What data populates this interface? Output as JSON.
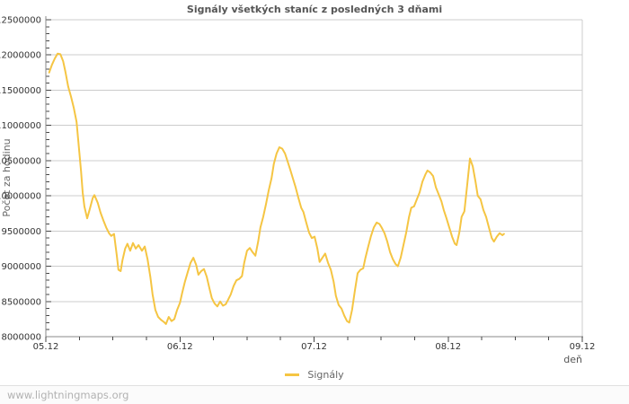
{
  "page": {
    "watermark": "www.lightningmaps.org"
  },
  "chart_data": {
    "type": "line",
    "title": "Signály všetkých staníc z posledných 3 dňami",
    "xlabel": "deň",
    "ylabel": "Počet za hodinu",
    "grid": true,
    "legend_position": "bottom-center",
    "x_range_hours": [
      0,
      96
    ],
    "ylim": [
      8000000,
      12500000
    ],
    "y_tick_step": 500000,
    "y_minor_step": 100000,
    "y_ticks": [
      "8000000",
      "8500000",
      "9000000",
      "9500000",
      "10000000",
      "10500000",
      "11000000",
      "11500000",
      "12000000",
      "12500000"
    ],
    "x_ticks": [
      {
        "hours": 0,
        "label": "05.12"
      },
      {
        "hours": 24,
        "label": "06.12"
      },
      {
        "hours": 48,
        "label": "07.12"
      },
      {
        "hours": 72,
        "label": "08.12"
      },
      {
        "hours": 96,
        "label": "09.12"
      }
    ],
    "x_minor_step_hours": 6,
    "colors": {
      "line": "#f5c543",
      "grid": "#cccccc",
      "axis": "#888888",
      "tick": "#444444",
      "title": "#555555",
      "watermark": "#b2b2b2"
    },
    "series": [
      {
        "name": "Signály",
        "points": [
          [
            0.6,
            11750000
          ],
          [
            1.1,
            11860000
          ],
          [
            1.6,
            11950000
          ],
          [
            2.1,
            12020000
          ],
          [
            2.6,
            12010000
          ],
          [
            3.1,
            11910000
          ],
          [
            3.5,
            11760000
          ],
          [
            4.0,
            11550000
          ],
          [
            4.5,
            11410000
          ],
          [
            5.0,
            11250000
          ],
          [
            5.5,
            11050000
          ],
          [
            5.9,
            10700000
          ],
          [
            6.3,
            10350000
          ],
          [
            6.6,
            10050000
          ],
          [
            6.9,
            9850000
          ],
          [
            7.4,
            9680000
          ],
          [
            7.9,
            9820000
          ],
          [
            8.4,
            9970000
          ],
          [
            8.7,
            10010000
          ],
          [
            9.3,
            9900000
          ],
          [
            9.8,
            9760000
          ],
          [
            10.3,
            9650000
          ],
          [
            10.8,
            9550000
          ],
          [
            11.3,
            9470000
          ],
          [
            11.7,
            9430000
          ],
          [
            12.2,
            9460000
          ],
          [
            12.7,
            9150000
          ],
          [
            13.0,
            8950000
          ],
          [
            13.4,
            8930000
          ],
          [
            13.7,
            9080000
          ],
          [
            14.2,
            9250000
          ],
          [
            14.6,
            9320000
          ],
          [
            15.1,
            9220000
          ],
          [
            15.6,
            9330000
          ],
          [
            16.1,
            9250000
          ],
          [
            16.6,
            9300000
          ],
          [
            17.2,
            9220000
          ],
          [
            17.7,
            9280000
          ],
          [
            18.2,
            9100000
          ],
          [
            18.7,
            8850000
          ],
          [
            19.1,
            8600000
          ],
          [
            19.6,
            8380000
          ],
          [
            20.1,
            8280000
          ],
          [
            20.6,
            8240000
          ],
          [
            21.1,
            8210000
          ],
          [
            21.5,
            8180000
          ],
          [
            22.0,
            8280000
          ],
          [
            22.5,
            8220000
          ],
          [
            23.0,
            8250000
          ],
          [
            23.5,
            8380000
          ],
          [
            24.0,
            8480000
          ],
          [
            24.4,
            8620000
          ],
          [
            24.9,
            8780000
          ],
          [
            25.4,
            8920000
          ],
          [
            25.9,
            9050000
          ],
          [
            26.4,
            9120000
          ],
          [
            26.9,
            9020000
          ],
          [
            27.3,
            8880000
          ],
          [
            27.8,
            8930000
          ],
          [
            28.3,
            8960000
          ],
          [
            28.8,
            8850000
          ],
          [
            29.3,
            8680000
          ],
          [
            29.7,
            8550000
          ],
          [
            30.2,
            8470000
          ],
          [
            30.7,
            8430000
          ],
          [
            31.2,
            8500000
          ],
          [
            31.7,
            8440000
          ],
          [
            32.2,
            8460000
          ],
          [
            32.6,
            8520000
          ],
          [
            33.1,
            8600000
          ],
          [
            33.6,
            8720000
          ],
          [
            34.1,
            8800000
          ],
          [
            34.6,
            8820000
          ],
          [
            35.1,
            8860000
          ],
          [
            35.5,
            9050000
          ],
          [
            36.0,
            9220000
          ],
          [
            36.5,
            9260000
          ],
          [
            37.0,
            9200000
          ],
          [
            37.5,
            9150000
          ],
          [
            38.0,
            9350000
          ],
          [
            38.4,
            9550000
          ],
          [
            38.9,
            9700000
          ],
          [
            39.4,
            9880000
          ],
          [
            39.9,
            10080000
          ],
          [
            40.4,
            10250000
          ],
          [
            40.8,
            10450000
          ],
          [
            41.3,
            10600000
          ],
          [
            41.8,
            10690000
          ],
          [
            42.3,
            10670000
          ],
          [
            42.8,
            10600000
          ],
          [
            43.3,
            10480000
          ],
          [
            43.7,
            10380000
          ],
          [
            44.2,
            10250000
          ],
          [
            44.7,
            10120000
          ],
          [
            45.2,
            9970000
          ],
          [
            45.7,
            9830000
          ],
          [
            46.1,
            9770000
          ],
          [
            46.6,
            9620000
          ],
          [
            47.1,
            9480000
          ],
          [
            47.6,
            9400000
          ],
          [
            48.1,
            9420000
          ],
          [
            48.6,
            9250000
          ],
          [
            49.0,
            9060000
          ],
          [
            49.5,
            9120000
          ],
          [
            50.0,
            9180000
          ],
          [
            50.5,
            9050000
          ],
          [
            51.0,
            8950000
          ],
          [
            51.5,
            8780000
          ],
          [
            51.9,
            8580000
          ],
          [
            52.4,
            8450000
          ],
          [
            52.9,
            8400000
          ],
          [
            53.4,
            8300000
          ],
          [
            53.9,
            8220000
          ],
          [
            54.3,
            8200000
          ],
          [
            54.8,
            8380000
          ],
          [
            55.3,
            8650000
          ],
          [
            55.8,
            8900000
          ],
          [
            56.3,
            8950000
          ],
          [
            56.8,
            8970000
          ],
          [
            57.2,
            9120000
          ],
          [
            57.7,
            9280000
          ],
          [
            58.2,
            9430000
          ],
          [
            58.7,
            9550000
          ],
          [
            59.2,
            9620000
          ],
          [
            59.7,
            9600000
          ],
          [
            60.1,
            9550000
          ],
          [
            60.6,
            9470000
          ],
          [
            61.1,
            9350000
          ],
          [
            61.6,
            9200000
          ],
          [
            62.1,
            9100000
          ],
          [
            62.6,
            9030000
          ],
          [
            63.0,
            9000000
          ],
          [
            63.5,
            9120000
          ],
          [
            64.0,
            9300000
          ],
          [
            64.5,
            9480000
          ],
          [
            65.0,
            9700000
          ],
          [
            65.4,
            9830000
          ],
          [
            65.9,
            9850000
          ],
          [
            66.4,
            9950000
          ],
          [
            66.9,
            10050000
          ],
          [
            67.4,
            10200000
          ],
          [
            67.9,
            10300000
          ],
          [
            68.3,
            10360000
          ],
          [
            68.8,
            10330000
          ],
          [
            69.3,
            10280000
          ],
          [
            69.8,
            10120000
          ],
          [
            70.3,
            10020000
          ],
          [
            70.8,
            9920000
          ],
          [
            71.2,
            9800000
          ],
          [
            71.7,
            9680000
          ],
          [
            72.2,
            9550000
          ],
          [
            72.7,
            9420000
          ],
          [
            73.2,
            9320000
          ],
          [
            73.5,
            9300000
          ],
          [
            74.0,
            9480000
          ],
          [
            74.4,
            9700000
          ],
          [
            74.9,
            9780000
          ],
          [
            75.4,
            10150000
          ],
          [
            75.9,
            10530000
          ],
          [
            76.4,
            10420000
          ],
          [
            76.9,
            10200000
          ],
          [
            77.3,
            10000000
          ],
          [
            77.8,
            9950000
          ],
          [
            78.3,
            9800000
          ],
          [
            78.8,
            9700000
          ],
          [
            79.3,
            9550000
          ],
          [
            79.8,
            9400000
          ],
          [
            80.2,
            9350000
          ],
          [
            80.7,
            9420000
          ],
          [
            81.2,
            9470000
          ],
          [
            81.7,
            9440000
          ],
          [
            82.0,
            9460000
          ]
        ]
      }
    ]
  }
}
